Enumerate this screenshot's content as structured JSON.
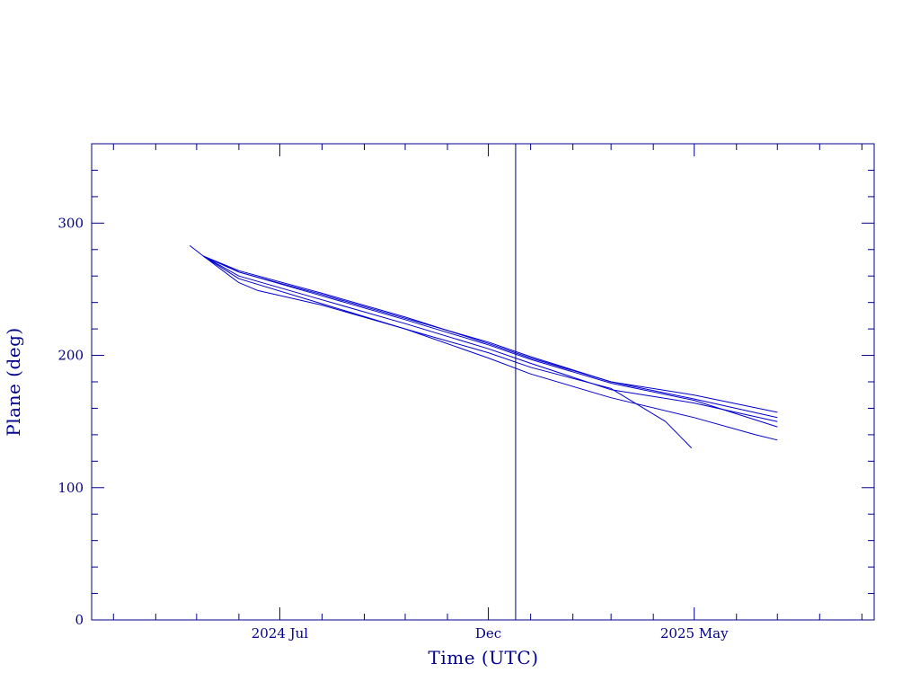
{
  "chart_data": {
    "type": "line",
    "xlabel": "Time (UTC)",
    "ylabel": "Plane (deg)",
    "x_tick_labels": [
      "2024 Jul",
      "Dec",
      "2025 May"
    ],
    "y_tick_labels": [
      "0",
      "100",
      "200",
      "300"
    ],
    "xlim": [
      "2024-02-14",
      "2025-09-10"
    ],
    "ylim": [
      0,
      360
    ],
    "y_ticks": [
      0,
      100,
      200,
      300
    ],
    "y_minor_step": 20,
    "x_major_ticks": [
      "2024-07-01",
      "2024-12-01",
      "2025-05-01"
    ],
    "x_minor_ticks": [
      "2024-03-01",
      "2024-04-01",
      "2024-05-01",
      "2024-06-01",
      "2024-08-01",
      "2024-09-01",
      "2024-10-01",
      "2024-11-01",
      "2025-01-01",
      "2025-02-01",
      "2025-03-01",
      "2025-04-01",
      "2025-06-01",
      "2025-07-01",
      "2025-08-01",
      "2025-09-01"
    ],
    "vertical_marker": "2024-12-21",
    "grid": false,
    "colors": {
      "axis": "#00008b",
      "series": "#0000cd"
    },
    "series": [
      {
        "points": [
          [
            "2024-04-26",
            283
          ],
          [
            "2024-05-06",
            275
          ],
          [
            "2024-06-01",
            263
          ],
          [
            "2024-08-01",
            246
          ],
          [
            "2024-10-01",
            228
          ],
          [
            "2024-12-01",
            210
          ],
          [
            "2025-01-01",
            199
          ],
          [
            "2025-03-01",
            180
          ],
          [
            "2025-05-01",
            170
          ],
          [
            "2025-07-01",
            157
          ]
        ]
      },
      {
        "points": [
          [
            "2024-05-06",
            275
          ],
          [
            "2024-06-01",
            264
          ],
          [
            "2024-08-01",
            247
          ],
          [
            "2024-10-01",
            229
          ],
          [
            "2024-12-01",
            209
          ],
          [
            "2025-01-01",
            198
          ],
          [
            "2025-03-01",
            180
          ],
          [
            "2025-05-01",
            167
          ],
          [
            "2025-07-01",
            153
          ]
        ]
      },
      {
        "points": [
          [
            "2024-05-06",
            275
          ],
          [
            "2024-06-01",
            263
          ],
          [
            "2024-08-01",
            245
          ],
          [
            "2024-10-01",
            227
          ],
          [
            "2024-12-01",
            208
          ],
          [
            "2025-01-01",
            197
          ],
          [
            "2025-03-01",
            179
          ],
          [
            "2025-05-01",
            166
          ],
          [
            "2025-07-01",
            146
          ]
        ]
      },
      {
        "points": [
          [
            "2024-05-06",
            275
          ],
          [
            "2024-06-01",
            260
          ],
          [
            "2024-08-01",
            242
          ],
          [
            "2024-10-01",
            224
          ],
          [
            "2024-12-01",
            205
          ],
          [
            "2025-01-01",
            194
          ],
          [
            "2025-03-01",
            174
          ],
          [
            "2025-05-01",
            164
          ],
          [
            "2025-07-01",
            150
          ]
        ]
      },
      {
        "points": [
          [
            "2024-05-06",
            275
          ],
          [
            "2024-06-01",
            258
          ],
          [
            "2024-08-01",
            239
          ],
          [
            "2024-10-01",
            220
          ],
          [
            "2024-12-01",
            202
          ],
          [
            "2025-01-01",
            191
          ],
          [
            "2025-03-01",
            175
          ],
          [
            "2025-04-10",
            150
          ],
          [
            "2025-04-29",
            130
          ]
        ]
      },
      {
        "points": [
          [
            "2024-05-06",
            275
          ],
          [
            "2024-06-01",
            255
          ],
          [
            "2024-06-15",
            249
          ],
          [
            "2024-08-01",
            238
          ],
          [
            "2024-10-01",
            220
          ],
          [
            "2024-12-01",
            198
          ],
          [
            "2025-01-01",
            186
          ],
          [
            "2025-03-01",
            168
          ],
          [
            "2025-05-01",
            153
          ],
          [
            "2025-06-15",
            140
          ],
          [
            "2025-07-01",
            136
          ]
        ]
      }
    ]
  }
}
